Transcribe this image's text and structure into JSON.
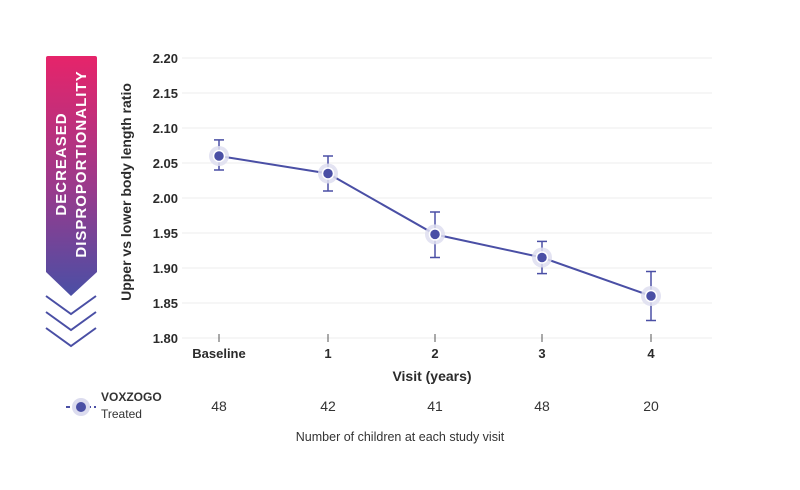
{
  "arrow_label_lines": [
    "DECREASED",
    "DISPROPORTIONALITY"
  ],
  "legend": {
    "line1": "VOXZOGO",
    "line2": "Treated"
  },
  "counts_caption": "Number of children at each study visit",
  "counts": [
    "48",
    "42",
    "41",
    "48",
    "20"
  ],
  "colors": {
    "series": "#4a4fa5",
    "grid": "#ececec",
    "arrow_top": "#e6246a",
    "arrow_bottom": "#4a4fa5"
  },
  "chart_data": {
    "type": "line",
    "xlabel": "Visit (years)",
    "ylabel": "Upper vs lower body length ratio",
    "categories": [
      "Baseline",
      "1",
      "2",
      "3",
      "4"
    ],
    "ylim": [
      1.8,
      2.2
    ],
    "yticks": [
      "1.80",
      "1.85",
      "1.90",
      "1.95",
      "2.00",
      "2.05",
      "2.10",
      "2.15",
      "2.20"
    ],
    "grid": true,
    "legend_position": "bottom-left",
    "series": [
      {
        "name": "VOXZOGO Treated",
        "values": [
          2.06,
          2.035,
          1.948,
          1.915,
          1.86
        ],
        "error_low": [
          2.04,
          2.01,
          1.915,
          1.892,
          1.825
        ],
        "error_high": [
          2.083,
          2.06,
          1.98,
          1.938,
          1.895
        ]
      }
    ]
  }
}
